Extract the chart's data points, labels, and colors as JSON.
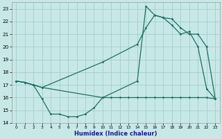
{
  "xlabel": "Humidex (Indice chaleur)",
  "bg_color": "#c8e8e8",
  "grid_color": "#a8d0d0",
  "line_color": "#1a7060",
  "xlim": [
    -0.5,
    23.5
  ],
  "ylim": [
    14,
    23.5
  ],
  "ytick_vals": [
    14,
    15,
    16,
    17,
    18,
    19,
    20,
    21,
    22,
    23
  ],
  "xtick_vals": [
    0,
    1,
    2,
    3,
    4,
    5,
    6,
    7,
    8,
    9,
    10,
    11,
    12,
    13,
    14,
    15,
    16,
    17,
    18,
    19,
    20,
    21,
    22,
    23
  ],
  "line1_x": [
    0,
    1,
    2,
    3,
    4,
    5,
    6,
    7,
    8,
    9,
    10,
    11,
    12,
    13,
    14,
    15,
    16,
    17,
    18,
    19,
    20,
    21,
    22,
    23
  ],
  "line1_y": [
    17.3,
    17.2,
    17.0,
    15.9,
    14.7,
    14.7,
    14.5,
    14.5,
    14.7,
    15.2,
    16.0,
    16.0,
    16.0,
    16.0,
    16.0,
    16.0,
    16.0,
    16.0,
    16.0,
    16.0,
    16.0,
    16.0,
    16.0,
    15.9
  ],
  "line2_x": [
    0,
    1,
    2,
    3,
    10,
    14,
    15,
    16,
    17,
    18,
    19,
    20,
    21,
    22,
    23
  ],
  "line2_y": [
    17.3,
    17.2,
    17.0,
    16.8,
    18.8,
    20.2,
    21.5,
    22.5,
    22.3,
    22.2,
    21.5,
    21.0,
    21.0,
    20.0,
    15.9
  ],
  "line3_x": [
    0,
    1,
    2,
    3,
    10,
    14,
    15,
    16,
    17,
    18,
    19,
    20,
    21,
    22,
    23
  ],
  "line3_y": [
    17.3,
    17.2,
    17.0,
    16.8,
    16.0,
    17.3,
    23.2,
    22.5,
    22.3,
    21.7,
    21.0,
    21.2,
    20.0,
    16.7,
    15.9
  ]
}
